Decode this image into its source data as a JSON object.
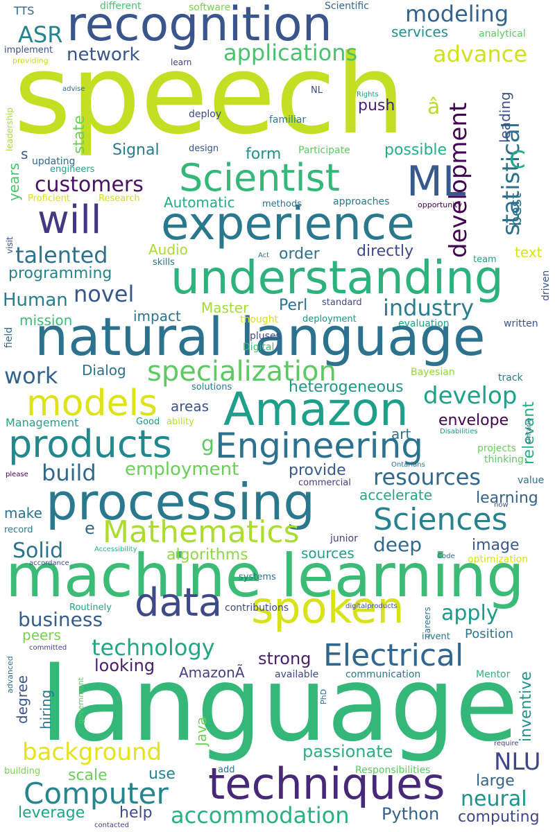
{
  "words": [
    {
      "text": "speech",
      "color": "#c2df23"
    },
    {
      "text": "language",
      "color": "#35b779"
    },
    {
      "text": "machine learning",
      "color": "#3bbb75"
    },
    {
      "text": "natural language",
      "color": "#2c728e"
    },
    {
      "text": "recognition",
      "color": "#3a548c"
    },
    {
      "text": "processing",
      "color": "#2a788e"
    },
    {
      "text": "experience",
      "color": "#2a788e"
    },
    {
      "text": "understanding",
      "color": "#2db27d"
    },
    {
      "text": "Amazon",
      "color": "#1f9e89"
    },
    {
      "text": "techniques",
      "color": "#482878"
    },
    {
      "text": "spoken",
      "color": "#d8e219"
    },
    {
      "text": "data",
      "color": "#3e4989"
    },
    {
      "text": "Engineering",
      "color": "#2c728e"
    },
    {
      "text": "products",
      "color": "#23888e"
    },
    {
      "text": "Scientist",
      "color": "#35b779"
    },
    {
      "text": "ML",
      "color": "#38598c"
    },
    {
      "text": "models",
      "color": "#dde318"
    },
    {
      "text": "will",
      "color": "#453781"
    },
    {
      "text": "Mathematics",
      "color": "#addc30"
    },
    {
      "text": "Sciences",
      "color": "#26828e"
    },
    {
      "text": "Electrical",
      "color": "#31668e"
    },
    {
      "text": "Computer",
      "color": "#25858e"
    },
    {
      "text": "specialization",
      "color": "#5ec962"
    },
    {
      "text": "development",
      "color": "#440154"
    },
    {
      "text": "statistical",
      "color": "#2d708e"
    },
    {
      "text": "modeling",
      "color": "#33638d"
    },
    {
      "text": "applications",
      "color": "#4ac16d"
    },
    {
      "text": "industry",
      "color": "#287d8e"
    },
    {
      "text": "background",
      "color": "#e5e419"
    },
    {
      "text": "accommodation",
      "color": "#2ab07f"
    },
    {
      "text": "technology",
      "color": "#22a785"
    },
    {
      "text": "resources",
      "color": "#31688e"
    },
    {
      "text": "develop",
      "color": "#1fa088"
    },
    {
      "text": "customers",
      "color": "#471164"
    },
    {
      "text": "talented",
      "color": "#2d718e"
    },
    {
      "text": "work",
      "color": "#33638d"
    },
    {
      "text": "neural",
      "color": "#21918c"
    },
    {
      "text": "NLU",
      "color": "#3f4788"
    },
    {
      "text": "advance",
      "color": "#d0e11c"
    },
    {
      "text": "ASR",
      "color": "#25838e"
    },
    {
      "text": "network",
      "color": "#39558c"
    },
    {
      "text": "build",
      "color": "#31688e"
    },
    {
      "text": "employment",
      "color": "#6ccd5a"
    },
    {
      "text": "business",
      "color": "#365d8d"
    },
    {
      "text": "apply",
      "color": "#1f9a8a"
    },
    {
      "text": "novel",
      "color": "#39568c"
    },
    {
      "text": "Human",
      "color": "#287c8e"
    },
    {
      "text": "deep",
      "color": "#31688e"
    },
    {
      "text": "Solid",
      "color": "#2c728e"
    },
    {
      "text": "algorithms",
      "color": "#8fd744"
    },
    {
      "text": "programming",
      "color": "#26828e"
    },
    {
      "text": "heterogeneous",
      "color": "#1f968b"
    },
    {
      "text": "learning",
      "color": "#33638d"
    },
    {
      "text": "inventive",
      "color": "#21918c"
    },
    {
      "text": "strong",
      "color": "#481f70"
    },
    {
      "text": "looking",
      "color": "#481c6e"
    },
    {
      "text": "passionate",
      "color": "#2ab07f"
    },
    {
      "text": "Python",
      "color": "#34618d"
    },
    {
      "text": "computing",
      "color": "#3f4788"
    },
    {
      "text": "leverage",
      "color": "#20a386"
    },
    {
      "text": "help",
      "color": "#3e4a89"
    },
    {
      "text": "large",
      "color": "#33638d"
    },
    {
      "text": "scale",
      "color": "#6ccd5a"
    },
    {
      "text": "use",
      "color": "#26828e"
    },
    {
      "text": "envelope",
      "color": "#440154"
    },
    {
      "text": "provide",
      "color": "#38598c"
    },
    {
      "text": "relevant",
      "color": "#27ad81"
    },
    {
      "text": "image",
      "color": "#38588c"
    },
    {
      "text": "directly",
      "color": "#3e4989"
    },
    {
      "text": "order",
      "color": "#2c728e"
    },
    {
      "text": "Signal",
      "color": "#287c8e"
    },
    {
      "text": "form",
      "color": "#21918c"
    },
    {
      "text": "possible",
      "color": "#27ad81"
    },
    {
      "text": "push",
      "color": "#482071"
    },
    {
      "text": "state",
      "color": "#6ccd5a"
    },
    {
      "text": "best",
      "color": "#2c728e"
    },
    {
      "text": "C",
      "color": "#22a884"
    },
    {
      "text": "leading",
      "color": "#3b518b"
    },
    {
      "text": "services",
      "color": "#21918c"
    },
    {
      "text": "Audio",
      "color": "#a8db34"
    },
    {
      "text": "Automatic",
      "color": "#25ac82"
    },
    {
      "text": "impact",
      "color": "#2c728e"
    },
    {
      "text": "Master",
      "color": "#a5db36"
    },
    {
      "text": "Perl",
      "color": "#2d708e"
    },
    {
      "text": "mission",
      "color": "#3dbc74"
    },
    {
      "text": "Dialog",
      "color": "#2d708e"
    },
    {
      "text": "art",
      "color": "#2d708e"
    },
    {
      "text": "areas",
      "color": "#3b528b"
    },
    {
      "text": "sources",
      "color": "#1fa088"
    },
    {
      "text": "accelerate",
      "color": "#22a785"
    },
    {
      "text": "make",
      "color": "#2c728e"
    },
    {
      "text": "e",
      "color": "#31688e"
    },
    {
      "text": "g",
      "color": "#5ec962"
    },
    {
      "text": "â",
      "color": "#b5de2b"
    },
    {
      "text": "s",
      "color": "#3b528b"
    },
    {
      "text": "AmazonÃ",
      "color": "#433e85"
    },
    {
      "text": "Java",
      "color": "#73d056"
    },
    {
      "text": "degree",
      "color": "#3a548c"
    },
    {
      "text": "hiring",
      "color": "#2a788e"
    },
    {
      "text": "years",
      "color": "#4ac16d"
    },
    {
      "text": "peers",
      "color": "#7ad151"
    },
    {
      "text": "Position",
      "color": "#2a788e"
    },
    {
      "text": "software",
      "color": "#7ad151"
    },
    {
      "text": "Scientific",
      "color": "#31688e"
    },
    {
      "text": "analytical",
      "color": "#5ec962"
    },
    {
      "text": "different",
      "color": "#4ac16d"
    },
    {
      "text": "TTS",
      "color": "#31688e"
    },
    {
      "text": "implement",
      "color": "#3b528b"
    },
    {
      "text": "providing",
      "color": "#bade28"
    },
    {
      "text": "learn",
      "color": "#433e85"
    },
    {
      "text": "advise",
      "color": "#31688e"
    },
    {
      "text": "NL",
      "color": "#3e4989"
    },
    {
      "text": "Rights",
      "color": "#1f9e89"
    },
    {
      "text": "deploy",
      "color": "#3e4989"
    },
    {
      "text": "familiar",
      "color": "#287d8e"
    },
    {
      "text": "leadership",
      "color": "#a8db34"
    },
    {
      "text": "design",
      "color": "#3b528b"
    },
    {
      "text": "Participate",
      "color": "#5ec962"
    },
    {
      "text": "updating",
      "color": "#31688e"
    },
    {
      "text": "engineers",
      "color": "#20a386"
    },
    {
      "text": "Proficient",
      "color": "#d8e219"
    },
    {
      "text": "Research",
      "color": "#d0e11c"
    },
    {
      "text": "methods",
      "color": "#2d708e"
    },
    {
      "text": "approaches",
      "color": "#2a788e"
    },
    {
      "text": "opportunity",
      "color": "#440154"
    },
    {
      "text": "visit",
      "color": "#3b528b"
    },
    {
      "text": "Act",
      "color": "#2d708e"
    },
    {
      "text": "skills",
      "color": "#2d708e"
    },
    {
      "text": "team",
      "color": "#20a386"
    },
    {
      "text": "text",
      "color": "#d8e219"
    },
    {
      "text": "driven",
      "color": "#3b528b"
    },
    {
      "text": "standard",
      "color": "#3e4989"
    },
    {
      "text": "thought",
      "color": "#d8e219"
    },
    {
      "text": "deployment",
      "color": "#21918c"
    },
    {
      "text": "evaluation",
      "color": "#1fa088"
    },
    {
      "text": "written",
      "color": "#3b528b"
    },
    {
      "text": "field",
      "color": "#31688e"
    },
    {
      "text": "pluses",
      "color": "#3e4989"
    },
    {
      "text": "Digital",
      "color": "#3dbc74"
    },
    {
      "text": "Bayesian",
      "color": "#8fd744"
    },
    {
      "text": "solutions",
      "color": "#2a788e"
    },
    {
      "text": "track",
      "color": "#2a788e"
    },
    {
      "text": "Management",
      "color": "#20a386"
    },
    {
      "text": "Good",
      "color": "#1f968b"
    },
    {
      "text": "ability",
      "color": "#b5de2b"
    },
    {
      "text": "Disabilities",
      "color": "#1f968b"
    },
    {
      "text": "Ontario",
      "color": "#31688e"
    },
    {
      "text": "projects",
      "color": "#6ccd5a"
    },
    {
      "text": "thinking",
      "color": "#5ec962"
    },
    {
      "text": "please",
      "color": "#440154"
    },
    {
      "text": "Ontarians",
      "color": "#2d708e"
    },
    {
      "text": "commercial",
      "color": "#433e85"
    },
    {
      "text": "value",
      "color": "#2d708e"
    },
    {
      "text": "now",
      "color": "#3b528b"
    },
    {
      "text": "record",
      "color": "#2a788e"
    },
    {
      "text": "Accessibility",
      "color": "#2db27d"
    },
    {
      "text": "Code",
      "color": "#31688e"
    },
    {
      "text": "optimization",
      "color": "#d8e219"
    },
    {
      "text": "junior",
      "color": "#433e85"
    },
    {
      "text": "accordance",
      "color": "#3e4989"
    },
    {
      "text": "systems",
      "color": "#2d708e"
    },
    {
      "text": "Routinely",
      "color": "#20a386"
    },
    {
      "text": "contributions",
      "color": "#3e4989"
    },
    {
      "text": "digitalproducts",
      "color": "#3b528b"
    },
    {
      "text": "careers",
      "color": "#2d708e"
    },
    {
      "text": "invent",
      "color": "#2a788e"
    },
    {
      "text": "advanced",
      "color": "#2d708e"
    },
    {
      "text": "committed",
      "color": "#433e85"
    },
    {
      "text": "government",
      "color": "#5ec962"
    },
    {
      "text": "available",
      "color": "#3e4989"
    },
    {
      "text": "communication",
      "color": "#2a788e"
    },
    {
      "text": "Mentor",
      "color": "#2db27d"
    },
    {
      "text": "PhD",
      "color": "#31688e"
    },
    {
      "text": "require",
      "color": "#433e85"
    },
    {
      "text": "building",
      "color": "#7ad151"
    },
    {
      "text": "add",
      "color": "#2d708e"
    },
    {
      "text": "Responsibilities",
      "color": "#5ec962"
    },
    {
      "text": "contacted",
      "color": "#433e85"
    }
  ]
}
